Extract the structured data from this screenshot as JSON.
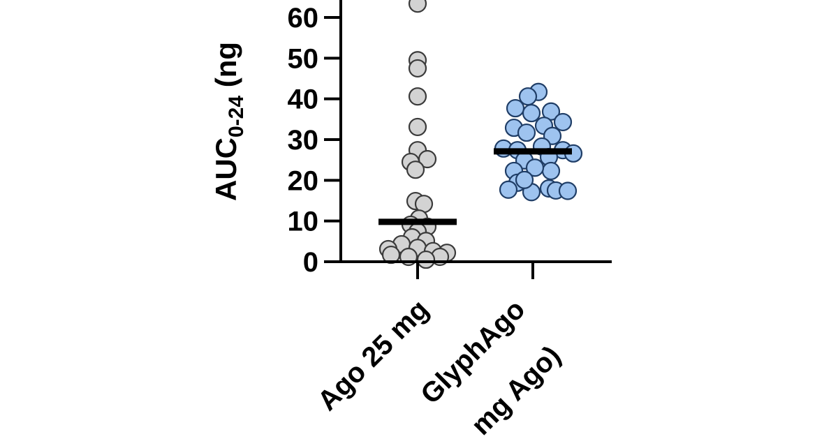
{
  "chart_data": {
    "type": "scatter",
    "title": "",
    "ylabel": {
      "main": "AUC",
      "subscript": "0-24",
      "suffix": " (ng"
    },
    "ylim": [
      0,
      60
    ],
    "yticks": [
      0,
      10,
      20,
      30,
      40,
      50,
      60
    ],
    "grid": false,
    "categories": [
      {
        "lines": [
          "Ago 25 mg"
        ]
      },
      {
        "lines": [
          "GlyphAgo",
          "mg Ago)"
        ]
      }
    ],
    "series": [
      {
        "category": 0,
        "color": "#d3d3d3",
        "mean": 9.8,
        "values": [
          63.4,
          49.5,
          47.5,
          40.6,
          33.1,
          27.4,
          25.2,
          24.5,
          22.6,
          14.9,
          14.2,
          10.6,
          9.1,
          8.6,
          7.4,
          6.0,
          5.1,
          4.3,
          3.4,
          3.1,
          2.6,
          2.2,
          1.7,
          1.2,
          1.2,
          0.5
        ],
        "offsets": [
          0,
          0,
          0,
          0,
          0,
          0,
          14,
          -10,
          -3,
          -3,
          9,
          2,
          -10,
          14,
          0,
          -8,
          12,
          -23,
          0,
          -42,
          22,
          42,
          -38,
          -13,
          32,
          12
        ]
      },
      {
        "category": 1,
        "color": "#9ec3ef",
        "mean": 27.1,
        "values": [
          41.7,
          40.6,
          37.7,
          36.5,
          36.9,
          32.9,
          33.4,
          34.3,
          31.7,
          30.9,
          28.3,
          27.8,
          27.4,
          27.4,
          24.9,
          25.7,
          26.6,
          22.3,
          22.3,
          23.1,
          19.4,
          18.0,
          17.7,
          17.1,
          17.5,
          17.4,
          20.1
        ],
        "offsets": [
          8,
          -7,
          -25,
          -2,
          26,
          -27,
          16,
          43,
          -9,
          28,
          13,
          -42,
          -22,
          43,
          -12,
          23,
          58,
          -27,
          26,
          3,
          -22,
          23,
          -35,
          -2,
          33,
          50,
          -12
        ]
      }
    ]
  }
}
